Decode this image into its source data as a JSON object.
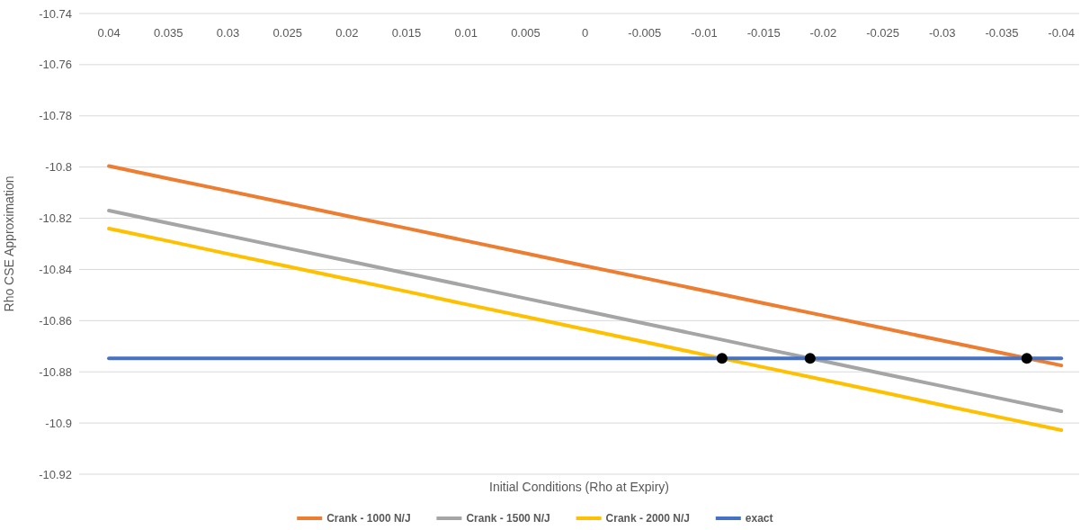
{
  "chart_data": {
    "type": "line",
    "xlabel": "Initial Conditions (Rho at Expiry)",
    "ylabel": "Rho CSE Approximation",
    "x": [
      0.04,
      0.035,
      0.03,
      0.025,
      0.02,
      0.015,
      0.01,
      0.005,
      0,
      -0.005,
      -0.01,
      -0.015,
      -0.02,
      -0.025,
      -0.03,
      -0.035,
      -0.04
    ],
    "xlim": [
      0.0425,
      -0.0415
    ],
    "xticks": [
      0.04,
      0.035,
      0.03,
      0.025,
      0.02,
      0.015,
      0.01,
      0.005,
      0,
      -0.005,
      -0.01,
      -0.015,
      -0.02,
      -0.025,
      -0.03,
      -0.035,
      -0.04
    ],
    "ylim": [
      -10.92,
      -10.74
    ],
    "yticks": [
      -10.74,
      -10.76,
      -10.78,
      -10.8,
      -10.82,
      -10.84,
      -10.86,
      -10.88,
      -10.9,
      -10.92
    ],
    "grid": "y",
    "legend": "bottom",
    "series": [
      {
        "name": "Crank - 1000 N/J",
        "color": "#ed7d31",
        "values": [
          -10.7996,
          -10.8045,
          -10.8093,
          -10.8142,
          -10.8191,
          -10.8239,
          -10.8288,
          -10.8337,
          -10.8386,
          -10.8434,
          -10.8483,
          -10.8532,
          -10.858,
          -10.8629,
          -10.8678,
          -10.8726,
          -10.8775
        ]
      },
      {
        "name": "Crank - 1500 N/J",
        "color": "#a5a5a5",
        "values": [
          -10.817,
          -10.8219,
          -10.8268,
          -10.8317,
          -10.8366,
          -10.8415,
          -10.8464,
          -10.8513,
          -10.8562,
          -10.8611,
          -10.866,
          -10.8709,
          -10.8758,
          -10.8807,
          -10.8856,
          -10.8905,
          -10.8954
        ]
      },
      {
        "name": "Crank - 2000 N/J",
        "color": "#ffc000",
        "values": [
          -10.824,
          -10.8289,
          -10.8339,
          -10.8388,
          -10.8437,
          -10.8486,
          -10.8536,
          -10.8585,
          -10.8634,
          -10.8683,
          -10.8733,
          -10.8782,
          -10.8831,
          -10.888,
          -10.893,
          -10.8979,
          -10.9028
        ]
      },
      {
        "name": "exact",
        "color": "#4472c4",
        "values": [
          -10.8747,
          -10.8747,
          -10.8747,
          -10.8747,
          -10.8747,
          -10.8747,
          -10.8747,
          -10.8747,
          -10.8747,
          -10.8747,
          -10.8747,
          -10.8747,
          -10.8747,
          -10.8747,
          -10.8747,
          -10.8747,
          -10.8747
        ]
      },
      {
        "type": "scatter",
        "marker": "circle",
        "color": "#000000",
        "x": [
          -0.0115,
          -0.0189,
          -0.0371
        ],
        "values": [
          -10.8747,
          -10.8747,
          -10.8747
        ]
      }
    ]
  }
}
